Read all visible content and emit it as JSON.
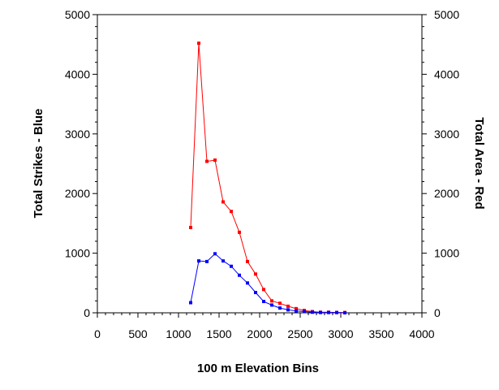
{
  "chart_data": {
    "type": "line",
    "xlabel": "100 m Elevation Bins",
    "ylabel_left": "Total Strikes - Blue",
    "ylabel_right": "Total Area - Red",
    "xlim": [
      0,
      4000
    ],
    "ylim": [
      0,
      5000
    ],
    "ylim_right": [
      0,
      5000
    ],
    "x_ticks": [
      0,
      500,
      1000,
      1500,
      2000,
      2500,
      3000,
      3500,
      4000
    ],
    "y_ticks": [
      0,
      1000,
      2000,
      3000,
      4000,
      5000
    ],
    "grid": false,
    "legend": "none",
    "series": [
      {
        "color": "#ff0000",
        "axis": "right",
        "x": [
          1150,
          1250,
          1350,
          1450,
          1550,
          1650,
          1750,
          1850,
          1950,
          2050,
          2150,
          2250,
          2350,
          2450,
          2550,
          2650,
          2750,
          2850,
          2950,
          3050
        ],
        "values": [
          1430,
          4520,
          2540,
          2560,
          1860,
          1700,
          1350,
          860,
          650,
          390,
          200,
          160,
          110,
          70,
          40,
          20,
          10,
          10,
          5,
          5
        ]
      },
      {
        "color": "#0000ff",
        "axis": "left",
        "x": [
          1150,
          1250,
          1350,
          1450,
          1550,
          1650,
          1750,
          1850,
          1950,
          2050,
          2150,
          2250,
          2350,
          2450,
          2550,
          2650,
          2750,
          2850,
          2950,
          3050
        ],
        "values": [
          170,
          870,
          860,
          990,
          870,
          780,
          630,
          500,
          340,
          190,
          130,
          80,
          50,
          30,
          20,
          10,
          5,
          5,
          5,
          0
        ]
      }
    ]
  }
}
